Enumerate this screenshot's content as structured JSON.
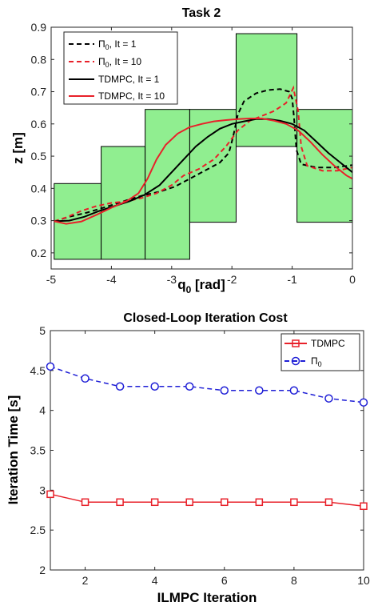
{
  "chart_data": [
    {
      "type": "line",
      "title": "Task 2",
      "xlabel": "q_0 [rad]",
      "ylabel": "z [m]",
      "xlim": [
        -5,
        0
      ],
      "ylim": [
        0.15,
        0.9
      ],
      "xticks": [
        "-5",
        "-4",
        "-3",
        "-2",
        "-1",
        "0"
      ],
      "yticks": [
        "0.2",
        "0.3",
        "0.4",
        "0.5",
        "0.6",
        "0.7",
        "0.8",
        "0.9"
      ],
      "grid": false,
      "legend_position": "top-left",
      "boxes_color": "#90ee90",
      "boxes": [
        {
          "x0": -4.95,
          "x1": -4.17,
          "y0": 0.18,
          "y1": 0.415
        },
        {
          "x0": -4.17,
          "x1": -3.44,
          "y0": 0.18,
          "y1": 0.53
        },
        {
          "x0": -3.44,
          "x1": -2.7,
          "y0": 0.18,
          "y1": 0.645
        },
        {
          "x0": -2.7,
          "x1": -1.93,
          "y0": 0.295,
          "y1": 0.645
        },
        {
          "x0": -1.93,
          "x1": -0.92,
          "y0": 0.53,
          "y1": 0.88
        },
        {
          "x0": -0.92,
          "x1": 0.0,
          "y0": 0.295,
          "y1": 0.645
        }
      ],
      "series": [
        {
          "name": "Π0, It = 1",
          "color": "#000000",
          "dash": "6,4",
          "points": [
            [
              -4.95,
              0.298
            ],
            [
              -4.7,
              0.312
            ],
            [
              -4.4,
              0.325
            ],
            [
              -4.1,
              0.342
            ],
            [
              -3.8,
              0.36
            ],
            [
              -3.5,
              0.377
            ],
            [
              -3.2,
              0.39
            ],
            [
              -2.95,
              0.405
            ],
            [
              -2.7,
              0.43
            ],
            [
              -2.45,
              0.455
            ],
            [
              -2.2,
              0.48
            ],
            [
              -2.05,
              0.51
            ],
            [
              -1.98,
              0.56
            ],
            [
              -1.9,
              0.63
            ],
            [
              -1.8,
              0.67
            ],
            [
              -1.6,
              0.695
            ],
            [
              -1.4,
              0.705
            ],
            [
              -1.2,
              0.708
            ],
            [
              -1.05,
              0.7
            ],
            [
              -1.0,
              0.68
            ],
            [
              -0.97,
              0.62
            ],
            [
              -0.93,
              0.52
            ],
            [
              -0.85,
              0.475
            ],
            [
              -0.6,
              0.465
            ],
            [
              -0.3,
              0.465
            ],
            [
              0.0,
              0.472
            ]
          ]
        },
        {
          "name": "Π0, It = 10",
          "color": "#e8212a",
          "dash": "6,4",
          "points": [
            [
              -4.95,
              0.298
            ],
            [
              -4.75,
              0.31
            ],
            [
              -4.5,
              0.33
            ],
            [
              -4.25,
              0.345
            ],
            [
              -4.0,
              0.355
            ],
            [
              -3.75,
              0.36
            ],
            [
              -3.5,
              0.37
            ],
            [
              -3.25,
              0.385
            ],
            [
              -3.0,
              0.41
            ],
            [
              -2.8,
              0.44
            ],
            [
              -2.55,
              0.46
            ],
            [
              -2.3,
              0.49
            ],
            [
              -2.1,
              0.53
            ],
            [
              -1.9,
              0.58
            ],
            [
              -1.7,
              0.61
            ],
            [
              -1.5,
              0.625
            ],
            [
              -1.3,
              0.64
            ],
            [
              -1.1,
              0.665
            ],
            [
              -0.98,
              0.712
            ],
            [
              -0.9,
              0.64
            ],
            [
              -0.85,
              0.53
            ],
            [
              -0.75,
              0.47
            ],
            [
              -0.5,
              0.455
            ],
            [
              -0.25,
              0.455
            ],
            [
              0.0,
              0.465
            ]
          ]
        },
        {
          "name": "TDMPC, It = 1",
          "color": "#000000",
          "dash": "",
          "points": [
            [
              -4.95,
              0.298
            ],
            [
              -4.7,
              0.3
            ],
            [
              -4.45,
              0.312
            ],
            [
              -4.2,
              0.33
            ],
            [
              -3.95,
              0.345
            ],
            [
              -3.7,
              0.36
            ],
            [
              -3.45,
              0.38
            ],
            [
              -3.2,
              0.41
            ],
            [
              -3.0,
              0.45
            ],
            [
              -2.8,
              0.49
            ],
            [
              -2.6,
              0.53
            ],
            [
              -2.4,
              0.56
            ],
            [
              -2.2,
              0.585
            ],
            [
              -2.0,
              0.6
            ],
            [
              -1.8,
              0.608
            ],
            [
              -1.6,
              0.615
            ],
            [
              -1.4,
              0.615
            ],
            [
              -1.2,
              0.61
            ],
            [
              -1.0,
              0.6
            ],
            [
              -0.8,
              0.58
            ],
            [
              -0.6,
              0.545
            ],
            [
              -0.4,
              0.51
            ],
            [
              -0.2,
              0.48
            ],
            [
              0.0,
              0.45
            ]
          ]
        },
        {
          "name": "TDMPC, It = 10",
          "color": "#e8212a",
          "dash": "",
          "points": [
            [
              -4.95,
              0.298
            ],
            [
              -4.75,
              0.29
            ],
            [
              -4.5,
              0.297
            ],
            [
              -4.25,
              0.318
            ],
            [
              -4.0,
              0.34
            ],
            [
              -3.75,
              0.36
            ],
            [
              -3.55,
              0.385
            ],
            [
              -3.4,
              0.43
            ],
            [
              -3.25,
              0.49
            ],
            [
              -3.1,
              0.535
            ],
            [
              -2.9,
              0.57
            ],
            [
              -2.7,
              0.59
            ],
            [
              -2.5,
              0.6
            ],
            [
              -2.3,
              0.608
            ],
            [
              -2.1,
              0.612
            ],
            [
              -1.9,
              0.615
            ],
            [
              -1.7,
              0.617
            ],
            [
              -1.5,
              0.617
            ],
            [
              -1.3,
              0.61
            ],
            [
              -1.1,
              0.6
            ],
            [
              -0.9,
              0.58
            ],
            [
              -0.7,
              0.545
            ],
            [
              -0.5,
              0.505
            ],
            [
              -0.3,
              0.47
            ],
            [
              -0.1,
              0.44
            ],
            [
              0.0,
              0.43
            ]
          ]
        }
      ]
    },
    {
      "type": "line",
      "title": "Closed-Loop Iteration Cost",
      "xlabel": "ILMPC Iteration",
      "ylabel": "Iteration Time [s]",
      "xlim": [
        1,
        10
      ],
      "ylim": [
        2,
        5
      ],
      "xticks": [
        "2",
        "4",
        "6",
        "8",
        "10"
      ],
      "yticks": [
        "2",
        "2.5",
        "3",
        "3.5",
        "4",
        "4.5",
        "5"
      ],
      "grid": false,
      "legend_position": "top-right",
      "x": [
        1,
        2,
        3,
        4,
        5,
        6,
        7,
        8,
        9,
        10
      ],
      "series": [
        {
          "name": "TDMPC",
          "color": "#e8212a",
          "dash": "",
          "marker": "square",
          "values": [
            2.95,
            2.85,
            2.85,
            2.85,
            2.85,
            2.85,
            2.85,
            2.85,
            2.85,
            2.8
          ]
        },
        {
          "name": "Π0",
          "color": "#1f1fd6",
          "dash": "6,4",
          "marker": "circle",
          "values": [
            4.55,
            4.4,
            4.3,
            4.3,
            4.3,
            4.25,
            4.25,
            4.25,
            4.15,
            4.1
          ]
        }
      ]
    }
  ]
}
